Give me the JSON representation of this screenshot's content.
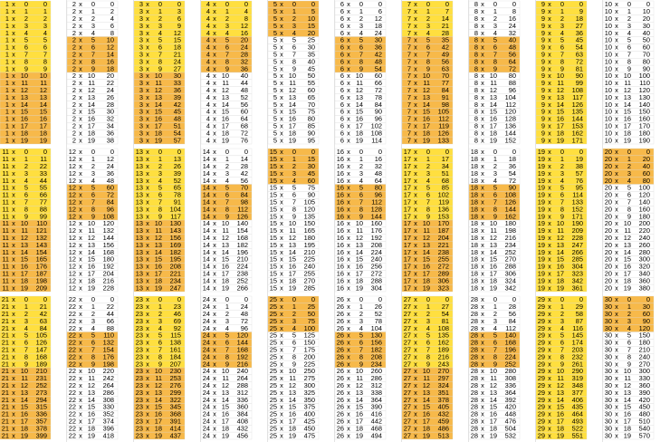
{
  "sign": "x",
  "multipliers": [
    0,
    1,
    2,
    3,
    4,
    5,
    6,
    7,
    8,
    9,
    10,
    11,
    12,
    13,
    14,
    15,
    16,
    17,
    18,
    19
  ],
  "tables": [
    {
      "n": 1,
      "fills": [
        "#ffdf3f",
        "#ffdf3f",
        "#f7b94a",
        "#f7b94a"
      ],
      "products": [
        0,
        1,
        2,
        3,
        4,
        5,
        6,
        7,
        8,
        9,
        10,
        11,
        12,
        13,
        14,
        15,
        16,
        17,
        18,
        19
      ]
    },
    {
      "n": 2,
      "fills": [
        "#ffffff",
        "#f7b94a",
        "#ffffff",
        "#ffffff"
      ],
      "products": [
        0,
        2,
        4,
        6,
        8,
        10,
        12,
        14,
        16,
        18,
        20,
        22,
        24,
        26,
        28,
        30,
        32,
        34,
        36,
        38
      ]
    },
    {
      "n": 3,
      "fills": [
        "#ffdf3f",
        "#ffdf3f",
        "#f7b94a",
        "#f7b94a"
      ],
      "products": [
        0,
        3,
        6,
        9,
        12,
        15,
        18,
        21,
        24,
        27,
        30,
        33,
        36,
        39,
        42,
        45,
        48,
        51,
        54,
        57
      ]
    },
    {
      "n": 4,
      "fills": [
        "#ffdf3f",
        "#f7b94a",
        "#ffffff",
        "#ffffff"
      ],
      "products": [
        0,
        4,
        8,
        12,
        16,
        20,
        24,
        28,
        32,
        36,
        40,
        44,
        48,
        52,
        56,
        60,
        64,
        68,
        72,
        76
      ]
    },
    {
      "n": 5,
      "fills": [
        "#f7b94a",
        "#ffffff",
        "#ffffff",
        "#ffffff"
      ],
      "products": [
        0,
        5,
        10,
        15,
        20,
        25,
        30,
        35,
        40,
        45,
        50,
        55,
        60,
        65,
        70,
        75,
        80,
        85,
        90,
        95
      ]
    },
    {
      "n": 6,
      "fills": [
        "#ffffff",
        "#f7b94a",
        "#ffffff",
        "#ffffff"
      ],
      "products": [
        0,
        6,
        12,
        18,
        24,
        30,
        36,
        42,
        48,
        54,
        60,
        66,
        72,
        78,
        84,
        90,
        96,
        102,
        108,
        114
      ]
    },
    {
      "n": 7,
      "fills": [
        "#ffdf3f",
        "#f7b94a",
        "#f7b94a",
        "#f7b94a"
      ],
      "products": [
        0,
        7,
        14,
        21,
        28,
        35,
        42,
        49,
        56,
        63,
        70,
        77,
        84,
        91,
        98,
        105,
        112,
        119,
        126,
        133
      ]
    },
    {
      "n": 8,
      "fills": [
        "#ffffff",
        "#f7b94a",
        "#ffffff",
        "#ffffff"
      ],
      "products": [
        0,
        8,
        16,
        24,
        32,
        40,
        48,
        56,
        64,
        72,
        80,
        88,
        96,
        104,
        112,
        120,
        128,
        136,
        144,
        152
      ]
    },
    {
      "n": 9,
      "fills": [
        "#ffdf3f",
        "#ffdf3f",
        "#ffdf3f",
        "#ffdf3f"
      ],
      "products": [
        0,
        9,
        18,
        27,
        36,
        45,
        54,
        63,
        72,
        81,
        90,
        99,
        108,
        117,
        126,
        135,
        144,
        153,
        162,
        171
      ]
    },
    {
      "n": 10,
      "fills": [
        "#ffffff",
        "#ffffff",
        "#ffffff",
        "#ffffff"
      ],
      "products": [
        0,
        10,
        20,
        30,
        40,
        50,
        60,
        70,
        80,
        90,
        100,
        110,
        120,
        130,
        140,
        150,
        160,
        170,
        180,
        190
      ]
    },
    {
      "n": 11,
      "fills": [
        "#ffdf3f",
        "#ffdf3f",
        "#f7b94a",
        "#f7b94a"
      ],
      "products": [
        0,
        11,
        22,
        33,
        44,
        55,
        66,
        77,
        88,
        99,
        110,
        121,
        132,
        143,
        154,
        165,
        176,
        187,
        198,
        209
      ]
    },
    {
      "n": 12,
      "fills": [
        "#ffffff",
        "#f7b94a",
        "#ffffff",
        "#ffffff"
      ],
      "products": [
        0,
        12,
        24,
        36,
        48,
        60,
        72,
        84,
        96,
        108,
        120,
        132,
        144,
        156,
        168,
        180,
        192,
        204,
        216,
        228
      ]
    },
    {
      "n": 13,
      "fills": [
        "#ffdf3f",
        "#ffdf3f",
        "#f7b94a",
        "#f7b94a"
      ],
      "products": [
        0,
        13,
        26,
        39,
        52,
        65,
        78,
        91,
        104,
        117,
        130,
        143,
        156,
        169,
        182,
        195,
        208,
        221,
        234,
        247
      ]
    },
    {
      "n": 14,
      "fills": [
        "#ffffff",
        "#f7b94a",
        "#ffffff",
        "#ffffff"
      ],
      "products": [
        0,
        14,
        28,
        42,
        56,
        70,
        84,
        98,
        112,
        126,
        140,
        154,
        168,
        182,
        196,
        210,
        224,
        238,
        252,
        266
      ]
    },
    {
      "n": 15,
      "fills": [
        "#f7b94a",
        "#ffffff",
        "#ffffff",
        "#ffffff"
      ],
      "products": [
        0,
        15,
        30,
        45,
        60,
        75,
        90,
        105,
        120,
        135,
        150,
        165,
        180,
        195,
        210,
        225,
        240,
        255,
        270,
        285
      ]
    },
    {
      "n": 16,
      "fills": [
        "#ffffff",
        "#f7b94a",
        "#ffffff",
        "#ffffff"
      ],
      "products": [
        0,
        16,
        32,
        48,
        64,
        80,
        96,
        112,
        128,
        144,
        160,
        176,
        192,
        208,
        224,
        240,
        256,
        272,
        288,
        304
      ]
    },
    {
      "n": 17,
      "fills": [
        "#ffdf3f",
        "#ffdf3f",
        "#f7b94a",
        "#f7b94a"
      ],
      "products": [
        0,
        17,
        34,
        51,
        68,
        85,
        102,
        119,
        136,
        153,
        170,
        187,
        204,
        221,
        238,
        255,
        272,
        289,
        306,
        323
      ]
    },
    {
      "n": 18,
      "fills": [
        "#ffffff",
        "#f7b94a",
        "#ffffff",
        "#ffffff"
      ],
      "products": [
        0,
        18,
        36,
        54,
        72,
        90,
        108,
        126,
        144,
        162,
        180,
        198,
        216,
        234,
        252,
        270,
        288,
        306,
        324,
        342
      ]
    },
    {
      "n": 19,
      "fills": [
        "#ffdf3f",
        "#ffdf3f",
        "#ffdf3f",
        "#ffdf3f"
      ],
      "products": [
        0,
        19,
        38,
        57,
        76,
        95,
        114,
        133,
        152,
        171,
        190,
        209,
        228,
        247,
        266,
        285,
        304,
        323,
        342,
        361
      ]
    },
    {
      "n": 20,
      "fills": [
        "#f7b94a",
        "#ffffff",
        "#ffffff",
        "#ffffff"
      ],
      "products": [
        0,
        20,
        40,
        60,
        80,
        100,
        120,
        140,
        160,
        180,
        200,
        220,
        240,
        260,
        280,
        300,
        320,
        340,
        360,
        380
      ]
    },
    {
      "n": 21,
      "fills": [
        "#ffdf3f",
        "#ffdf3f",
        "#f7b94a",
        "#f7b94a"
      ],
      "products": [
        0,
        21,
        42,
        63,
        84,
        105,
        126,
        147,
        168,
        189,
        210,
        231,
        252,
        273,
        294,
        315,
        336,
        357,
        378,
        399
      ]
    },
    {
      "n": 22,
      "fills": [
        "#ffffff",
        "#f7b94a",
        "#ffffff",
        "#ffffff"
      ],
      "products": [
        0,
        22,
        44,
        66,
        88,
        110,
        132,
        154,
        176,
        198,
        220,
        242,
        264,
        286,
        308,
        330,
        352,
        374,
        396,
        418
      ]
    },
    {
      "n": 23,
      "fills": [
        "#ffdf3f",
        "#ffdf3f",
        "#f7b94a",
        "#f7b94a"
      ],
      "products": [
        0,
        23,
        46,
        69,
        92,
        115,
        138,
        161,
        184,
        207,
        230,
        253,
        276,
        299,
        322,
        345,
        368,
        391,
        414,
        437
      ]
    },
    {
      "n": 24,
      "fills": [
        "#ffffff",
        "#f7b94a",
        "#ffffff",
        "#ffffff"
      ],
      "products": [
        0,
        24,
        48,
        72,
        96,
        120,
        144,
        168,
        192,
        216,
        240,
        264,
        288,
        312,
        336,
        360,
        384,
        408,
        432,
        456
      ]
    },
    {
      "n": 25,
      "fills": [
        "#f7b94a",
        "#ffffff",
        "#ffffff",
        "#ffffff"
      ],
      "products": [
        0,
        25,
        50,
        75,
        100,
        125,
        150,
        175,
        200,
        225,
        250,
        275,
        300,
        325,
        350,
        375,
        400,
        425,
        450,
        475
      ]
    },
    {
      "n": 26,
      "fills": [
        "#ffffff",
        "#f7b94a",
        "#ffffff",
        "#ffffff"
      ],
      "products": [
        0,
        26,
        52,
        78,
        104,
        130,
        156,
        182,
        208,
        234,
        260,
        286,
        312,
        338,
        364,
        390,
        416,
        442,
        468,
        494
      ]
    },
    {
      "n": 27,
      "fills": [
        "#ffdf3f",
        "#ffdf3f",
        "#f7b94a",
        "#f7b94a"
      ],
      "products": [
        0,
        27,
        54,
        81,
        108,
        135,
        162,
        189,
        216,
        243,
        270,
        297,
        324,
        351,
        378,
        405,
        432,
        459,
        486,
        513
      ]
    },
    {
      "n": 28,
      "fills": [
        "#ffffff",
        "#f7b94a",
        "#ffffff",
        "#ffffff"
      ],
      "products": [
        0,
        28,
        56,
        84,
        112,
        140,
        168,
        196,
        224,
        252,
        280,
        308,
        336,
        364,
        392,
        420,
        448,
        476,
        504,
        532
      ]
    },
    {
      "n": 29,
      "fills": [
        "#ffdf3f",
        "#ffdf3f",
        "#ffdf3f",
        "#ffdf3f"
      ],
      "products": [
        0,
        29,
        58,
        87,
        116,
        145,
        174,
        203,
        232,
        261,
        290,
        319,
        348,
        377,
        406,
        435,
        464,
        493,
        522,
        551
      ]
    },
    {
      "n": 30,
      "fills": [
        "#f7b94a",
        "#ffffff",
        "#ffffff",
        "#ffffff"
      ],
      "products": [
        0,
        30,
        60,
        90,
        120,
        150,
        180,
        210,
        240,
        270,
        300,
        330,
        360,
        390,
        420,
        450,
        480,
        510,
        540,
        570
      ]
    }
  ]
}
